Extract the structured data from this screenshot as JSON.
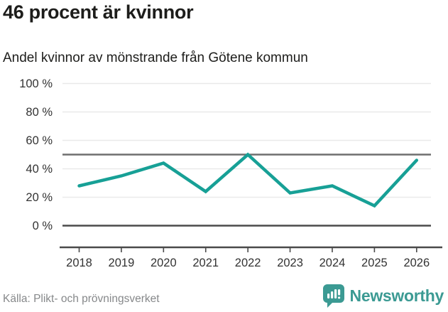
{
  "header": {
    "title": "46 procent är kvinnor",
    "subtitle": "Andel kvinnor av mönstrande från Götene kommun"
  },
  "chart_data": {
    "type": "line",
    "title": "46 procent är kvinnor",
    "subtitle": "Andel kvinnor av mönstrande från Götene kommun",
    "x": [
      2018,
      2019,
      2020,
      2021,
      2022,
      2023,
      2024,
      2025,
      2026
    ],
    "series": [
      {
        "name": "Andel kvinnor av mönstrande",
        "values": [
          28,
          35,
          44,
          24,
          50,
          23,
          28,
          14,
          46
        ]
      }
    ],
    "ylim": [
      0,
      100
    ],
    "yticks": [
      0,
      20,
      40,
      60,
      80,
      100
    ],
    "ytick_suffix": " %",
    "reference_line": 50,
    "grid": true,
    "legend": "none",
    "xlabel": "",
    "ylabel": ""
  },
  "footer": {
    "source_label": "Källa: Plikt- och prövningsverket",
    "brand_label": "Newsworthy"
  },
  "colors": {
    "line": "#17a096",
    "grid": "#e9e9e9",
    "axis": "#4a4a4a",
    "reference_line": "#6f6f6f",
    "tick_text": "#333333",
    "brand_teal": "#3b9a93",
    "title_text": "#1d1d1b",
    "muted_text": "#86888a"
  }
}
